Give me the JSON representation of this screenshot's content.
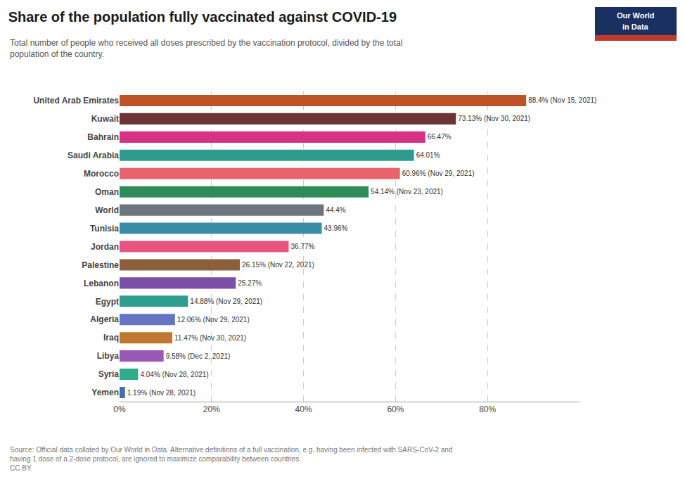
{
  "chart_data": {
    "type": "bar",
    "orientation": "horizontal",
    "title": "Share of the population fully vaccinated against COVID-19",
    "subtitle": "Total number of people who received all doses prescribed by the vaccination protocol, divided by the total\npopulation of the country.",
    "annotations": [
      "Source: Official data collated by Our World in Data. Alternative definitions of a full vaccination, e.g. having been infected with SARS-CoV-2 and\nhaving 1 dose of a 2-dose protocol, are ignored to maximize comparability between countries.\nCC BY",
      "Our World",
      "in Data"
    ],
    "categories": [
      "United Arab Emirates",
      "Kuwait",
      "Bahrain",
      "Saudi Arabia",
      "Morocco",
      "Oman",
      "World",
      "Tunisia",
      "Jordan",
      "Palestine",
      "Lebanon",
      "Egypt",
      "Algeria",
      "Iraq",
      "Libya",
      "Syria",
      "Yemen"
    ],
    "values": [
      88.4,
      73.13,
      66.47,
      64.01,
      60.96,
      54.14,
      44.4,
      43.96,
      36.77,
      26.15,
      25.27,
      14.88,
      12.06,
      11.47,
      9.58,
      4.04,
      1.19
    ],
    "value_labels": [
      "88.4% (Nov 15, 2021)",
      "73.13% (Nov 30, 2021)",
      "66.47%",
      "64.01%",
      "60.96% (Nov 29, 2021)",
      "54.14% (Nov 23, 2021)",
      "44.4%",
      "43.96%",
      "36.77%",
      "26.15% (Nov 22, 2021)",
      "25.27%",
      "14.88% (Nov 29, 2021)",
      "12.06% (Nov 29, 2021)",
      "11.47% (Nov 30, 2021)",
      "9.58% (Dec 2, 2021)",
      "4.04% (Nov 28, 2021)",
      "1.19% (Nov 28, 2021)"
    ],
    "data_labels": true,
    "colors": [
      "#c0522a",
      "#6b3535",
      "#d63384",
      "#2d9c8e",
      "#e8636b",
      "#2e8b57",
      "#6c757d",
      "#3a8ca8",
      "#e75480",
      "#8b5e3c",
      "#7b4fa6",
      "#2e9e8e",
      "#6575c4",
      "#c07830",
      "#9b59b6",
      "#2eaa8c",
      "#4a6fa5"
    ],
    "xlim": [
      0,
      100
    ],
    "xticks": [
      {
        "value": 0,
        "label": "0%"
      },
      {
        "value": 20,
        "label": "20%"
      },
      {
        "value": 40,
        "label": "40%"
      },
      {
        "value": 60,
        "label": "60%"
      },
      {
        "value": 80,
        "label": "80%"
      }
    ],
    "grid": true
  }
}
